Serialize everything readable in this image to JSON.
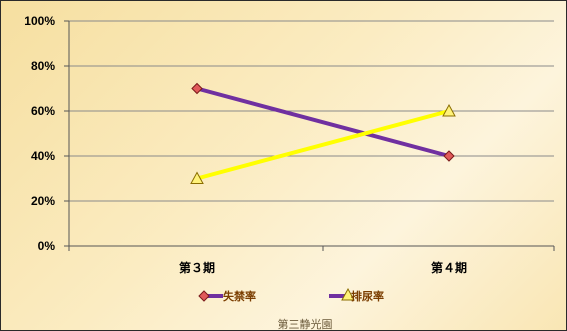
{
  "chart_data": {
    "type": "line",
    "categories": [
      "第３期",
      "第４期"
    ],
    "series": [
      {
        "name": "失禁率",
        "values": [
          70,
          40
        ],
        "color": "#7030a0",
        "marker": "diamond",
        "marker_color": "#c0392b"
      },
      {
        "name": "排尿率",
        "values": [
          30,
          60
        ],
        "color": "#ffff00",
        "marker": "triangle",
        "marker_color": "#f2c200"
      }
    ],
    "ylim": [
      0,
      100
    ],
    "yticks": [
      "0%",
      "20%",
      "40%",
      "60%",
      "80%",
      "100%"
    ],
    "ytick_values": [
      0,
      20,
      40,
      60,
      80,
      100
    ],
    "grid": true,
    "legend_position": "bottom",
    "caption": "第三静光園"
  }
}
